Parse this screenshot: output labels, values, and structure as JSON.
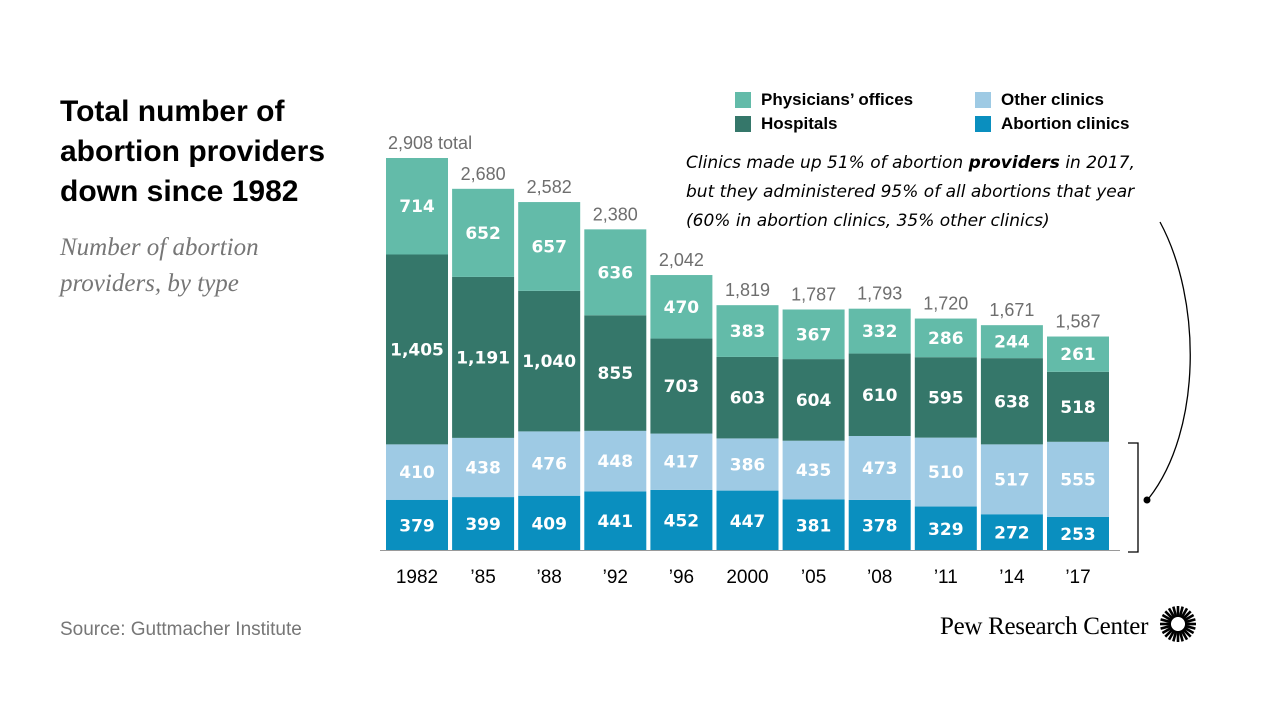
{
  "header": {
    "title": "Total number of abortion providers down since 1982",
    "subtitle": "Number of abortion providers, by type"
  },
  "annotation": {
    "line1_pre": "Clinics made up 51% of abortion ",
    "line1_bold": "providers",
    "line1_post": " in 2017,",
    "line2": "but they administered 95% of all abortions that year",
    "line3": "(60% in abortion clinics, 35% other clinics)"
  },
  "footer": {
    "source": "Source: Guttmacher Institute",
    "brand": "Pew Research Center",
    "brand_icon": "sunburst-logo-icon"
  },
  "legend": {
    "items": [
      {
        "label": "Physicians’ offices",
        "color": "#63bba9"
      },
      {
        "label": "Other clinics",
        "color": "#9ecae4"
      },
      {
        "label": "Hospitals",
        "color": "#35776a"
      },
      {
        "label": "Abortion clinics",
        "color": "#0a8fbf"
      }
    ]
  },
  "chart_data": {
    "type": "bar",
    "stacked": true,
    "categories": [
      "1982",
      "’85",
      "’88",
      "’92",
      "’96",
      "2000",
      "’05",
      "’08",
      "’11",
      "’14",
      "’17"
    ],
    "series": [
      {
        "name": "Abortion clinics",
        "color": "#0a8fbf",
        "values": [
          379,
          399,
          409,
          441,
          452,
          447,
          381,
          378,
          329,
          272,
          253
        ]
      },
      {
        "name": "Other clinics",
        "color": "#9ecae4",
        "values": [
          410,
          438,
          476,
          448,
          417,
          386,
          435,
          473,
          510,
          517,
          555
        ]
      },
      {
        "name": "Hospitals",
        "color": "#35776a",
        "values": [
          1405,
          1191,
          1040,
          855,
          703,
          603,
          604,
          610,
          595,
          638,
          518
        ]
      },
      {
        "name": "Physicians’ offices",
        "color": "#63bba9",
        "values": [
          714,
          652,
          657,
          636,
          470,
          383,
          367,
          332,
          286,
          244,
          261
        ]
      }
    ],
    "totals": [
      "2,908 total",
      "2,680",
      "2,582",
      "2,380",
      "2,042",
      "1,819",
      "1,787",
      "1,793",
      "1,720",
      "1,671",
      "1,587"
    ],
    "ylim": [
      0,
      2908
    ],
    "grid": false,
    "legend_position": "top-right"
  }
}
